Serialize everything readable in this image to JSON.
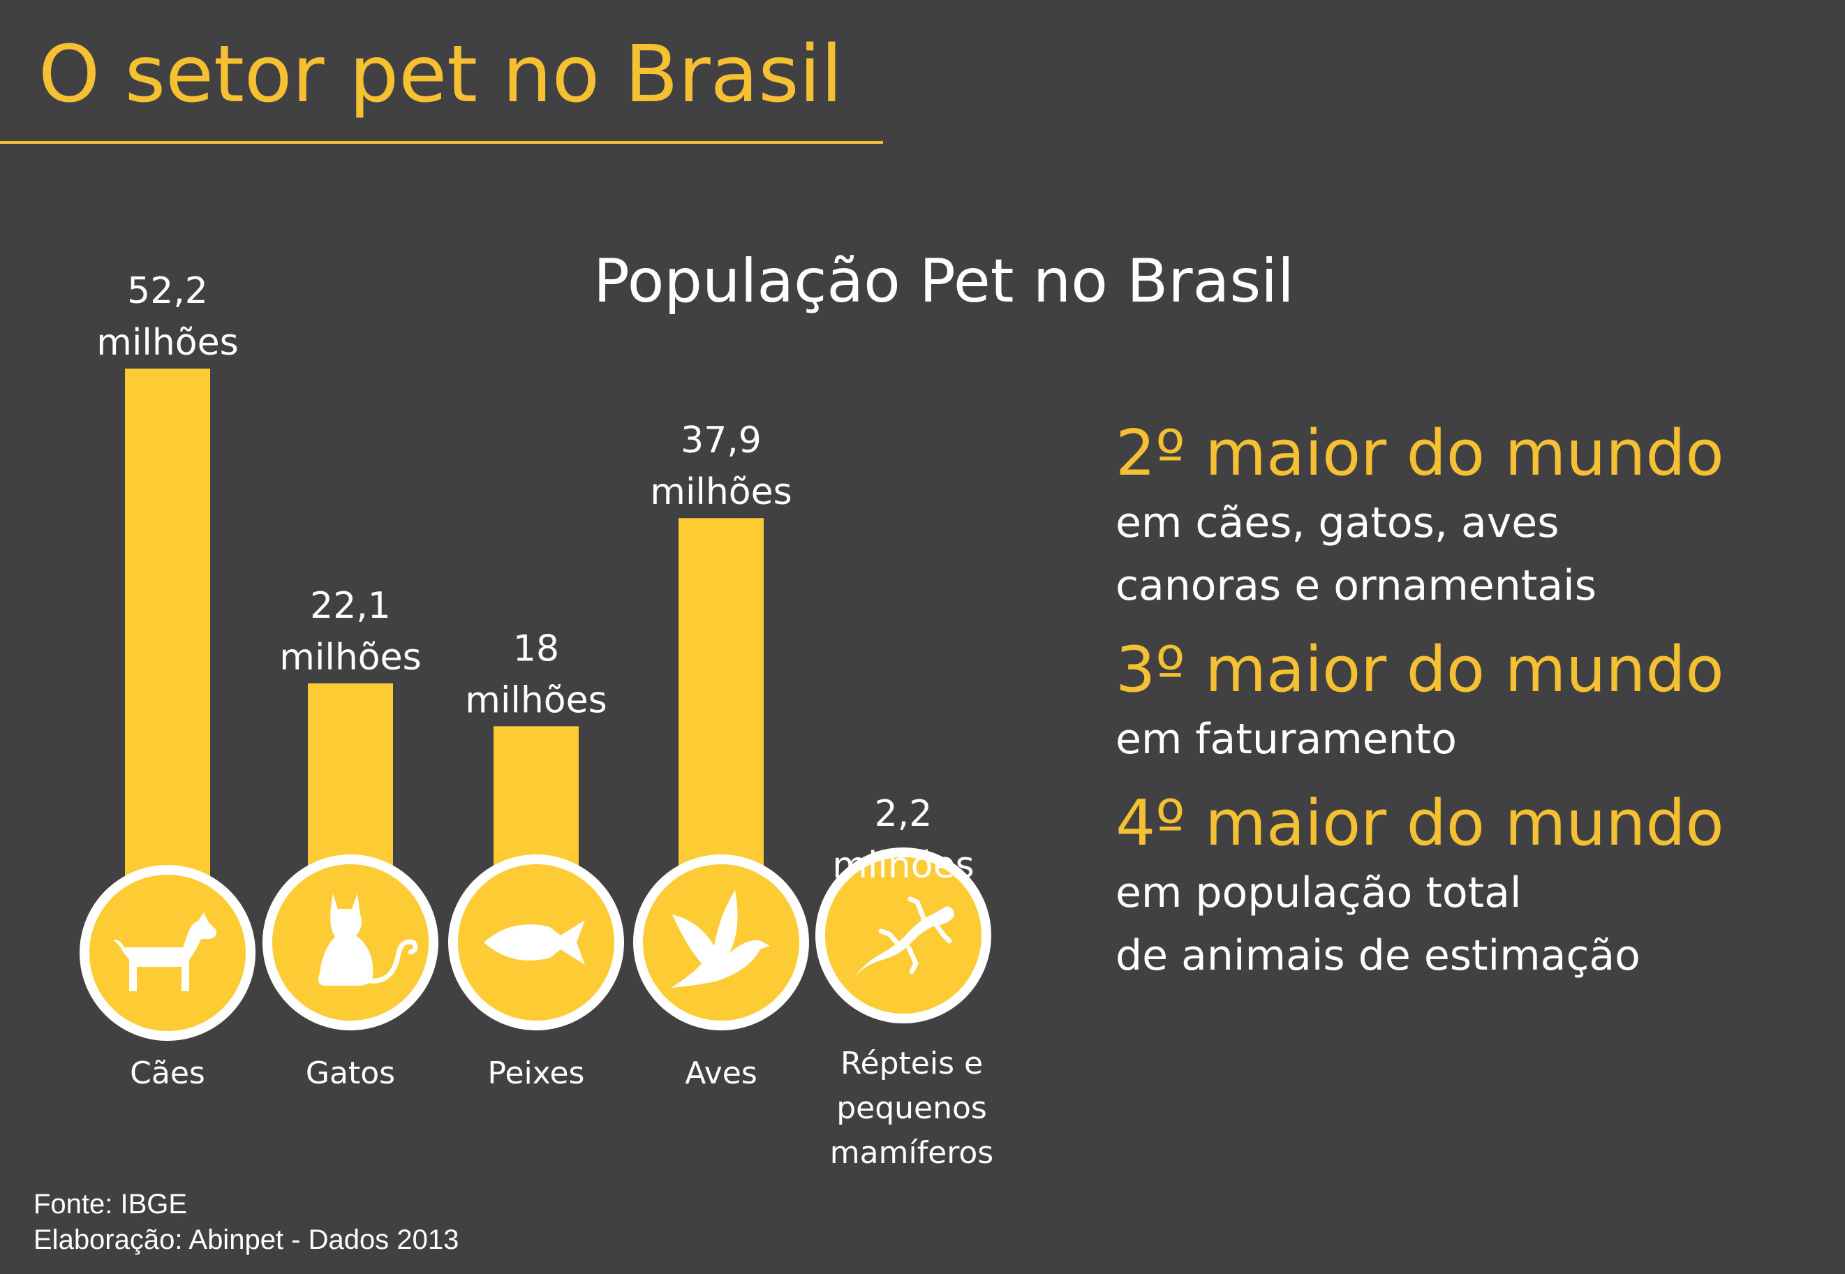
{
  "page_title": "O setor pet no Brasil",
  "chart_data": {
    "type": "bar",
    "title": "População Pet no Brasil",
    "unit": "milhões",
    "categories": [
      "Cães",
      "Gatos",
      "Peixes",
      "Aves",
      "Répteis e pequenos mamíferos"
    ],
    "category_lines": [
      [
        "Cães"
      ],
      [
        "Gatos"
      ],
      [
        "Peixes"
      ],
      [
        "Aves"
      ],
      [
        "Répteis e",
        "pequenos",
        "mamíferos"
      ]
    ],
    "values": [
      52.2,
      22.1,
      18,
      37.9,
      2.2
    ],
    "value_labels": [
      "52,2",
      "22,1",
      "18",
      "37,9",
      "2,2"
    ],
    "icons": [
      "dog-icon",
      "cat-icon",
      "fish-icon",
      "bird-icon",
      "lizard-icon"
    ],
    "xlabel": "",
    "ylabel": "",
    "ylim": [
      0,
      52.2
    ],
    "bar_color": "#FDCB33"
  },
  "facts": [
    {
      "headline": "2º maior do mundo",
      "lines": [
        "em cães, gatos, aves",
        "canoras e ornamentais"
      ]
    },
    {
      "headline": "3º maior do mundo",
      "lines": [
        "em faturamento"
      ]
    },
    {
      "headline": "4º maior do mundo",
      "lines": [
        "em população total",
        "de animais de estimação"
      ]
    }
  ],
  "source": {
    "line1": "Fonte: IBGE",
    "line2": "Elaboração: Abinpet - Dados 2013"
  },
  "colors": {
    "background": "#414042",
    "accent": "#F5C132",
    "text": "#ffffff"
  }
}
